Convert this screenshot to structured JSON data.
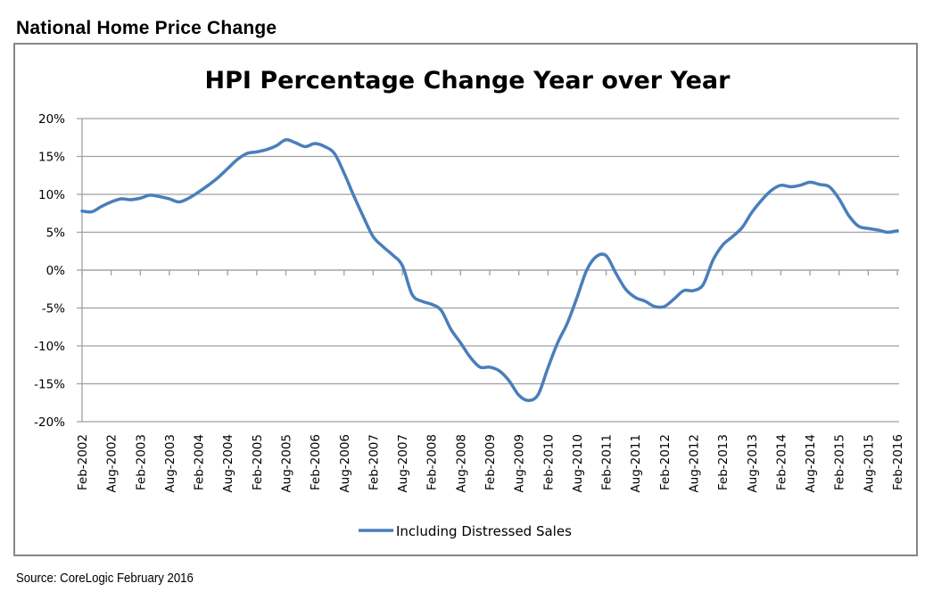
{
  "page": {
    "title": "National Home Price Change",
    "source": "Source: CoreLogic February 2016"
  },
  "chart_data": {
    "type": "line",
    "title": "HPI Percentage Change Year over Year",
    "xlabel": "",
    "ylabel": "",
    "ylim": [
      -20,
      20
    ],
    "yticks": [
      20,
      15,
      10,
      5,
      0,
      -5,
      -10,
      -15,
      -20
    ],
    "ytick_labels": [
      "20%",
      "15%",
      "10%",
      "5%",
      "0%",
      "-5%",
      "-10%",
      "-15%",
      "-20%"
    ],
    "xtick_labels": [
      "Feb-2002",
      "Aug-2002",
      "Feb-2003",
      "Aug-2003",
      "Feb-2004",
      "Aug-2004",
      "Feb-2005",
      "Aug-2005",
      "Feb-2006",
      "Aug-2006",
      "Feb-2007",
      "Aug-2007",
      "Feb-2008",
      "Aug-2008",
      "Feb-2009",
      "Aug-2009",
      "Feb-2010",
      "Aug-2010",
      "Feb-2011",
      "Aug-2011",
      "Feb-2012",
      "Aug-2012",
      "Feb-2013",
      "Aug-2013",
      "Feb-2014",
      "Aug-2014",
      "Feb-2015",
      "Aug-2015",
      "Feb-2016"
    ],
    "grid": "horizontal",
    "legend": "bottom",
    "series": [
      {
        "name": "Including Distressed Sales",
        "color": "#4a7ebb",
        "x_months_from_feb2002": [
          0,
          2,
          4,
          6,
          8,
          10,
          12,
          14,
          16,
          18,
          20,
          22,
          24,
          26,
          28,
          30,
          32,
          34,
          36,
          38,
          40,
          42,
          44,
          46,
          48,
          50,
          52,
          54,
          56,
          58,
          60,
          62,
          64,
          66,
          68,
          70,
          72,
          74,
          76,
          78,
          80,
          82,
          84,
          86,
          88,
          90,
          92,
          94,
          96,
          98,
          100,
          102,
          104,
          106,
          108,
          110,
          112,
          114,
          116,
          118,
          120,
          122,
          124,
          126,
          128,
          130,
          132,
          134,
          136,
          138,
          140,
          142,
          144,
          146,
          148,
          150,
          152,
          154,
          156,
          158,
          160,
          162,
          164,
          166,
          168
        ],
        "values": [
          7.8,
          7.7,
          8.4,
          9.0,
          9.4,
          9.3,
          9.5,
          9.9,
          9.7,
          9.4,
          9.0,
          9.5,
          10.3,
          11.2,
          12.2,
          13.4,
          14.6,
          15.4,
          15.6,
          15.9,
          16.4,
          17.2,
          16.8,
          16.3,
          16.7,
          16.3,
          15.4,
          12.8,
          9.8,
          7.0,
          4.4,
          3.1,
          2.0,
          0.6,
          -3.2,
          -4.1,
          -4.5,
          -5.3,
          -7.8,
          -9.6,
          -11.5,
          -12.8,
          -12.8,
          -13.3,
          -14.6,
          -16.5,
          -17.2,
          -16.4,
          -12.9,
          -9.6,
          -7.0,
          -3.6,
          0.0,
          1.8,
          1.9,
          -0.4,
          -2.5,
          -3.6,
          -4.1,
          -4.8,
          -4.8,
          -3.8,
          -2.7,
          -2.7,
          -1.9,
          1.3,
          3.3,
          4.4,
          5.6,
          7.6,
          9.2,
          10.5,
          11.2,
          11.0,
          11.2,
          11.6,
          11.3,
          11.0,
          9.4,
          7.2,
          5.8,
          5.5,
          5.3,
          5.0,
          5.2
        ]
      }
    ]
  }
}
